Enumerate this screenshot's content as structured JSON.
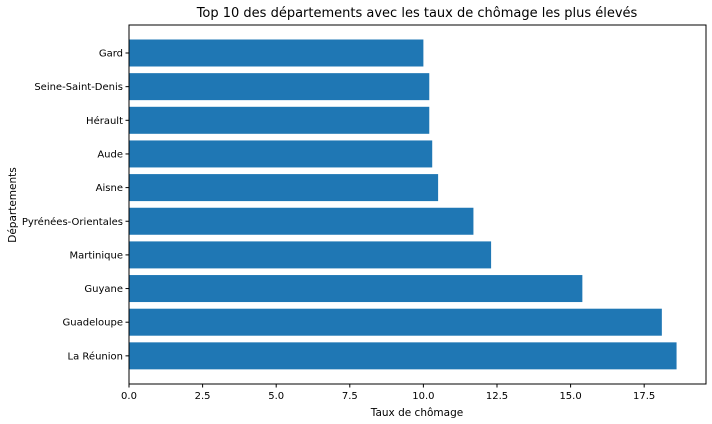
{
  "chart_data": {
    "type": "bar",
    "orientation": "horizontal",
    "title": "Top 10 des départements avec les taux de chômage les plus élevés",
    "xlabel": "Taux de chômage",
    "ylabel": "Départements",
    "categories": [
      "Gard",
      "Seine-Saint-Denis",
      "Hérault",
      "Aude",
      "Aisne",
      "Pyrénées-Orientales",
      "Martinique",
      "Guyane",
      "Guadeloupe",
      "La Réunion"
    ],
    "values": [
      10.0,
      10.2,
      10.2,
      10.3,
      10.5,
      11.7,
      12.3,
      15.4,
      18.1,
      18.6
    ],
    "xlim": [
      0,
      19.6
    ],
    "xticks": [
      "0.0",
      "2.5",
      "5.0",
      "7.5",
      "10.0",
      "12.5",
      "15.0",
      "17.5"
    ],
    "bar_color": "#1f77b4",
    "grid": false
  }
}
